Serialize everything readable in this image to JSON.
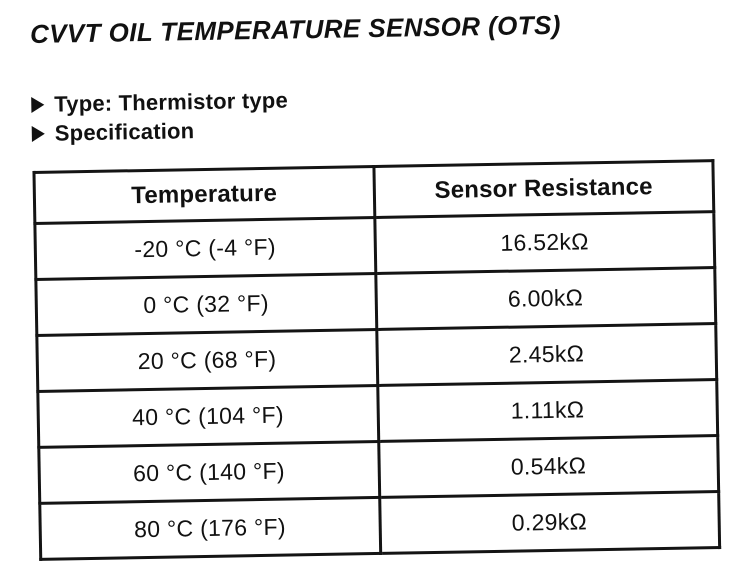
{
  "page": {
    "title": "CVVT OIL TEMPERATURE SENSOR (OTS)"
  },
  "bullets": [
    {
      "label": "Type: Thermistor type"
    },
    {
      "label": "Specification"
    }
  ],
  "icons": {
    "bullet": "right-pointing-filled-triangle"
  },
  "table": {
    "columns": [
      "Temperature",
      "Sensor Resistance"
    ],
    "rows": [
      {
        "temperature": "-20 °C (-4 °F)",
        "resistance": "16.52kΩ"
      },
      {
        "temperature": "0 °C (32 °F)",
        "resistance": "6.00kΩ"
      },
      {
        "temperature": "20 °C (68 °F)",
        "resistance": "2.45kΩ"
      },
      {
        "temperature": "40 °C (104 °F)",
        "resistance": "1.11kΩ"
      },
      {
        "temperature": "60 °C (140 °F)",
        "resistance": "0.54kΩ"
      },
      {
        "temperature": "80 °C (176 °F)",
        "resistance": "0.29kΩ"
      }
    ]
  },
  "colors": {
    "ink": "#111111",
    "background": "#ffffff"
  }
}
